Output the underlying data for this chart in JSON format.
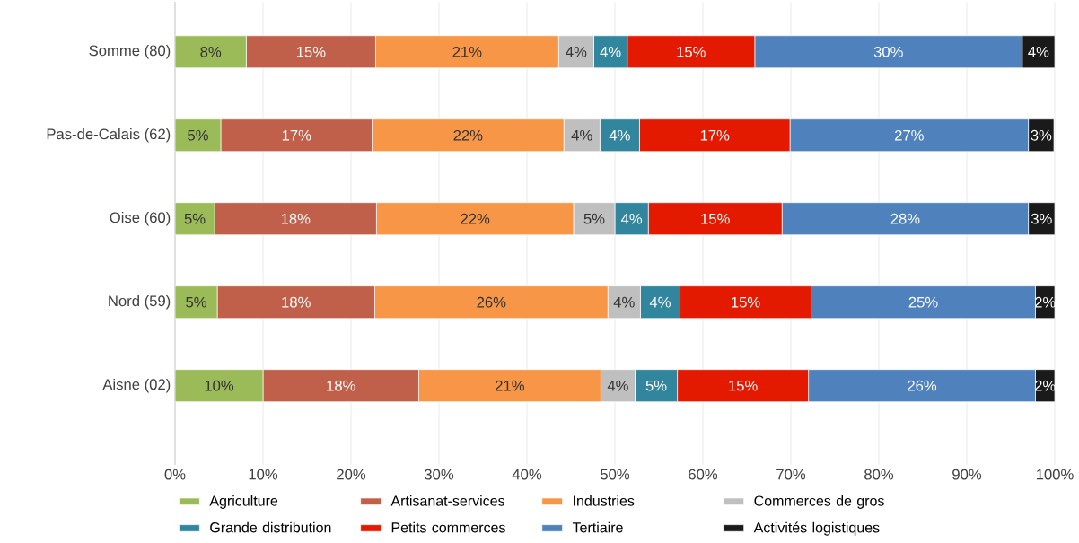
{
  "chart_data": {
    "type": "bar",
    "orientation": "horizontal",
    "stacked": true,
    "categories": [
      "Somme (80)",
      "Pas-de-Calais (62)",
      "Oise (60)",
      "Nord (59)",
      "Aisne (02)"
    ],
    "series": [
      {
        "name": "Agriculture",
        "color": "#9bbb59",
        "values": [
          8.1,
          5.2,
          4.5,
          4.8,
          10.0
        ],
        "value_labels": [
          "8%",
          "5%",
          "5%",
          "5%",
          "10%"
        ]
      },
      {
        "name": "Artisanat-services",
        "color": "#c0604a",
        "values": [
          14.7,
          17.2,
          18.4,
          17.9,
          17.7
        ],
        "value_labels": [
          "15%",
          "17%",
          "18%",
          "18%",
          "18%"
        ]
      },
      {
        "name": "Industries",
        "color": "#f79646",
        "values": [
          20.8,
          21.8,
          22.4,
          26.5,
          20.7
        ],
        "value_labels": [
          "21%",
          "22%",
          "22%",
          "26%",
          "21%"
        ]
      },
      {
        "name": "Commerces de gros",
        "color": "#bfbfbf",
        "values": [
          4.0,
          4.1,
          4.7,
          3.7,
          3.9
        ],
        "value_labels": [
          "4%",
          "4%",
          "5%",
          "4%",
          "4%"
        ]
      },
      {
        "name": "Grande distribution",
        "color": "#31859c",
        "values": [
          3.8,
          4.5,
          3.8,
          4.5,
          4.8
        ],
        "value_labels": [
          "4%",
          "4%",
          "4%",
          "4%",
          "5%"
        ]
      },
      {
        "name": "Petits commerces",
        "color": "#e41a00",
        "values": [
          14.5,
          17.1,
          15.2,
          14.9,
          14.9
        ],
        "value_labels": [
          "15%",
          "17%",
          "15%",
          "15%",
          "15%"
        ]
      },
      {
        "name": "Tertiaire",
        "color": "#4f81bd",
        "values": [
          30.4,
          27.1,
          28.0,
          25.5,
          25.8
        ],
        "value_labels": [
          "30%",
          "27%",
          "28%",
          "25%",
          "26%"
        ]
      },
      {
        "name": "Activités logistiques",
        "color": "#1a1a1a",
        "values": [
          3.7,
          2.9,
          3.0,
          2.2,
          2.2
        ],
        "value_labels": [
          "4%",
          "3%",
          "3%",
          "2%",
          "2%"
        ]
      }
    ],
    "xlim": [
      0,
      100
    ],
    "xticks": [
      {
        "value": 0,
        "label": "0%"
      },
      {
        "value": 10,
        "label": "10%"
      },
      {
        "value": 20,
        "label": "20%"
      },
      {
        "value": 30,
        "label": "30%"
      },
      {
        "value": 40,
        "label": "40%"
      },
      {
        "value": 50,
        "label": "50%"
      },
      {
        "value": 60,
        "label": "60%"
      },
      {
        "value": 70,
        "label": "70%"
      },
      {
        "value": 80,
        "label": "80%"
      },
      {
        "value": 90,
        "label": "90%"
      },
      {
        "value": 100,
        "label": "100%"
      }
    ],
    "grid": "x",
    "legend": "bottom"
  }
}
